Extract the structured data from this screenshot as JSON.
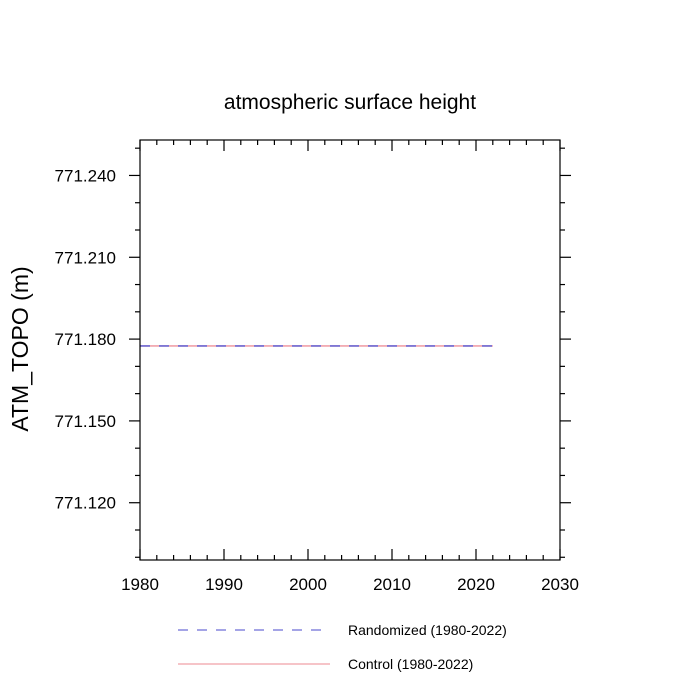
{
  "chart_data": {
    "type": "line",
    "title": "atmospheric surface height",
    "xlabel": "",
    "ylabel": "ATM_TOPO  (m)",
    "xlim": [
      1980,
      2030
    ],
    "ylim": [
      771.099,
      771.253
    ],
    "xticks": [
      1980,
      1990,
      2000,
      2010,
      2020,
      2030
    ],
    "xtick_labels": [
      "1980",
      "1990",
      "2000",
      "2010",
      "2020",
      "2030"
    ],
    "yticks": [
      771.12,
      771.15,
      771.18,
      771.21,
      771.24
    ],
    "ytick_labels": [
      "771.120",
      "771.150",
      "771.180",
      "771.210",
      "771.240"
    ],
    "x_minor_step": 2,
    "y_minor_step": 0.01,
    "grid": false,
    "legend_position": "bottom",
    "series": [
      {
        "name": "Randomized (1980-2022)",
        "color": "#6d6dd8",
        "dash": "dashed",
        "x": [
          1980,
          2022
        ],
        "y": [
          771.1775,
          771.1775
        ]
      },
      {
        "name": "Control (1980-2022)",
        "color": "#f0a0a8",
        "dash": "solid",
        "x": [
          1980,
          2022
        ],
        "y": [
          771.1775,
          771.1775
        ]
      }
    ]
  }
}
